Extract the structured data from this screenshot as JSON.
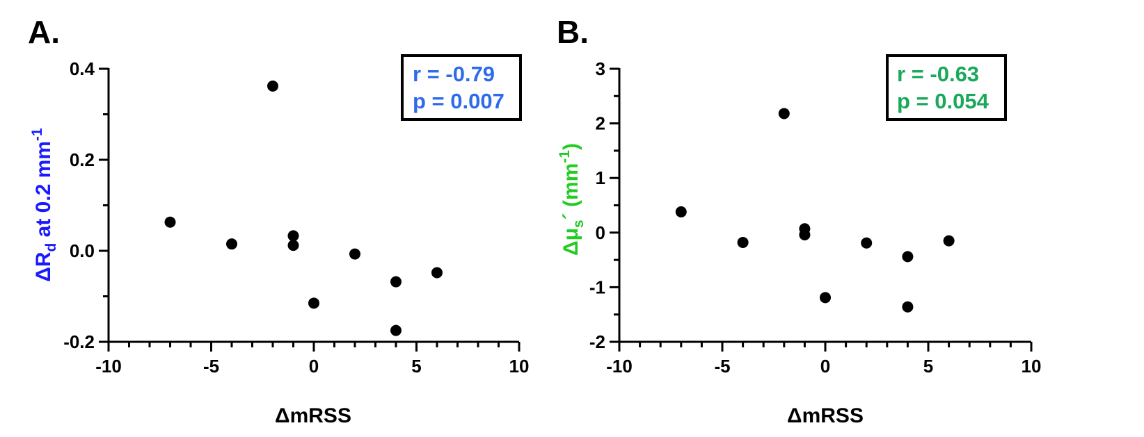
{
  "chart_data": [
    {
      "type": "scatter",
      "panel_label": "A.",
      "xlabel": "ΔmRSS",
      "ylabel": {
        "prefix": "ΔR",
        "sub": "d",
        "mid": " at 0.2 mm",
        "sup": "-1"
      },
      "ylabel_color": "#1a1aff",
      "x_ticks": [
        "-10",
        "-5",
        "0",
        "5",
        "10"
      ],
      "y_ticks": [
        "-0.2",
        "0.0",
        "0.2",
        "0.4"
      ],
      "xlim": [
        -10,
        10
      ],
      "ylim": [
        -0.2,
        0.4
      ],
      "x_tick_values": [
        -10,
        -5,
        0,
        5,
        10
      ],
      "y_tick_values": [
        -0.2,
        0.0,
        0.2,
        0.4
      ],
      "x_minor_step": 1,
      "y_minor_step": 0.1,
      "points": [
        {
          "x": -7,
          "y": 0.063
        },
        {
          "x": -4,
          "y": 0.015
        },
        {
          "x": -2,
          "y": 0.362
        },
        {
          "x": -1,
          "y": 0.033
        },
        {
          "x": -1,
          "y": 0.012
        },
        {
          "x": 0,
          "y": -0.115
        },
        {
          "x": 2,
          "y": -0.007
        },
        {
          "x": 4,
          "y": -0.068
        },
        {
          "x": 4,
          "y": -0.175
        },
        {
          "x": 6,
          "y": -0.048
        }
      ],
      "point_color": "#000000",
      "stats": {
        "r": "r = -0.79",
        "p": "p = 0.007"
      },
      "stats_color": "#2e6bea",
      "grid": false
    },
    {
      "type": "scatter",
      "panel_label": "B.",
      "xlabel": "ΔmRSS",
      "ylabel": {
        "prefix": "Δμ",
        "sub": "s",
        "mid": "´ (mm",
        "sup": "-1",
        "suffix": ")"
      },
      "ylabel_color": "#22cc22",
      "x_ticks": [
        "-10",
        "-5",
        "0",
        "5",
        "10"
      ],
      "y_ticks": [
        "-2",
        "-1",
        "0",
        "1",
        "2",
        "3"
      ],
      "xlim": [
        -10,
        10
      ],
      "ylim": [
        -2,
        3
      ],
      "x_tick_values": [
        -10,
        -5,
        0,
        5,
        10
      ],
      "y_tick_values": [
        -2,
        -1,
        0,
        1,
        2,
        3
      ],
      "x_minor_step": 1,
      "y_minor_step": 0.5,
      "points": [
        {
          "x": -7,
          "y": 0.38
        },
        {
          "x": -4,
          "y": -0.18
        },
        {
          "x": -2,
          "y": 2.18
        },
        {
          "x": -1,
          "y": 0.07
        },
        {
          "x": -1,
          "y": -0.04
        },
        {
          "x": 0,
          "y": -1.19
        },
        {
          "x": 2,
          "y": -0.19
        },
        {
          "x": 4,
          "y": -0.44
        },
        {
          "x": 4,
          "y": -1.36
        },
        {
          "x": 6,
          "y": -0.15
        }
      ],
      "point_color": "#000000",
      "stats": {
        "r": "r = -0.63",
        "p": "p = 0.054"
      },
      "stats_color": "#1aa85a",
      "grid": false
    }
  ]
}
